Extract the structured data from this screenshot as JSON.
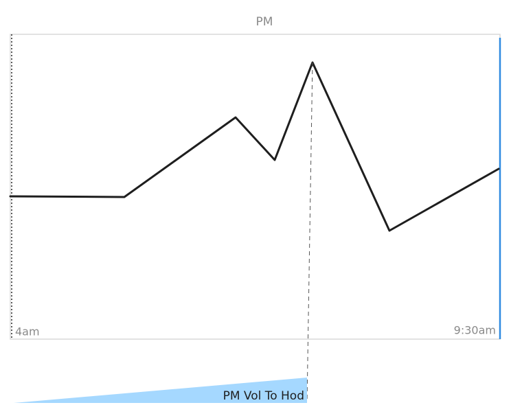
{
  "title": "PM",
  "axis": {
    "start": "4am",
    "end": "9:30am"
  },
  "volume_label": "PM Vol To Hod"
}
